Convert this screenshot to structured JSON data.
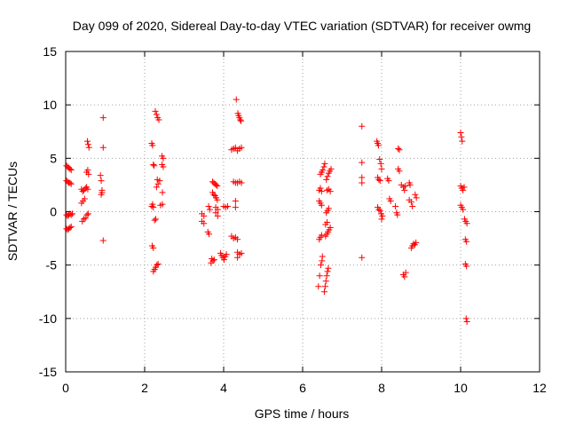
{
  "chart_data": {
    "type": "scatter",
    "title": "Day 099 of 2020, Sidereal Day-to-day VTEC variation (SDTVAR) for receiver owmg",
    "xlabel": "GPS time / hours",
    "ylabel": "SDTVAR / TECUs",
    "xlim": [
      0,
      12
    ],
    "ylim": [
      -15,
      15
    ],
    "xticks": [
      0,
      2,
      4,
      6,
      8,
      10,
      12
    ],
    "yticks": [
      -15,
      -10,
      -5,
      0,
      5,
      10,
      15
    ],
    "grid": true,
    "marker": "+",
    "color": "#ff0000",
    "series": [
      {
        "name": "SDTVAR",
        "points": [
          [
            0.02,
            4.3
          ],
          [
            0.05,
            4.2
          ],
          [
            0.08,
            4.1
          ],
          [
            0.11,
            4.0
          ],
          [
            0.14,
            3.9
          ],
          [
            0.02,
            2.9
          ],
          [
            0.05,
            2.8
          ],
          [
            0.08,
            2.7
          ],
          [
            0.11,
            2.7
          ],
          [
            0.14,
            2.6
          ],
          [
            0.02,
            -0.3
          ],
          [
            0.05,
            -0.4
          ],
          [
            0.08,
            -0.3
          ],
          [
            0.11,
            -0.2
          ],
          [
            0.14,
            -0.3
          ],
          [
            0.17,
            -0.2
          ],
          [
            0.02,
            -1.6
          ],
          [
            0.05,
            -1.7
          ],
          [
            0.08,
            -1.6
          ],
          [
            0.11,
            -1.5
          ],
          [
            0.14,
            -1.4
          ],
          [
            0.4,
            2.1
          ],
          [
            0.43,
            1.9
          ],
          [
            0.46,
            2.0
          ],
          [
            0.5,
            2.2
          ],
          [
            0.53,
            2.3
          ],
          [
            0.56,
            2.1
          ],
          [
            0.4,
            0.8
          ],
          [
            0.44,
            1.0
          ],
          [
            0.48,
            1.2
          ],
          [
            0.42,
            -0.9
          ],
          [
            0.46,
            -0.7
          ],
          [
            0.5,
            -0.6
          ],
          [
            0.54,
            -0.3
          ],
          [
            0.57,
            -0.2
          ],
          [
            0.53,
            3.7
          ],
          [
            0.56,
            3.9
          ],
          [
            0.58,
            3.5
          ],
          [
            0.55,
            6.6
          ],
          [
            0.57,
            6.3
          ],
          [
            0.59,
            6.0
          ],
          [
            0.88,
            3.4
          ],
          [
            0.9,
            2.9
          ],
          [
            0.92,
            2.0
          ],
          [
            0.9,
            1.6
          ],
          [
            0.92,
            1.8
          ],
          [
            0.95,
            8.8
          ],
          [
            0.95,
            6.0
          ],
          [
            0.95,
            -2.7
          ],
          [
            2.18,
            6.4
          ],
          [
            2.2,
            6.2
          ],
          [
            2.22,
            4.4
          ],
          [
            2.24,
            4.3
          ],
          [
            2.18,
            0.5
          ],
          [
            2.2,
            0.7
          ],
          [
            2.22,
            0.4
          ],
          [
            2.25,
            -0.8
          ],
          [
            2.28,
            -0.7
          ],
          [
            2.19,
            -3.2
          ],
          [
            2.22,
            -3.4
          ],
          [
            2.22,
            -5.6
          ],
          [
            2.25,
            -5.4
          ],
          [
            2.28,
            -5.2
          ],
          [
            2.31,
            -5.0
          ],
          [
            2.34,
            -4.9
          ],
          [
            2.27,
            9.4
          ],
          [
            2.3,
            9.1
          ],
          [
            2.33,
            8.8
          ],
          [
            2.36,
            8.6
          ],
          [
            2.3,
            2.3
          ],
          [
            2.34,
            2.6
          ],
          [
            2.38,
            2.9
          ],
          [
            2.32,
            3.0
          ],
          [
            2.44,
            5.2
          ],
          [
            2.47,
            5.0
          ],
          [
            2.44,
            4.4
          ],
          [
            2.47,
            4.2
          ],
          [
            2.4,
            0.6
          ],
          [
            2.45,
            0.7
          ],
          [
            2.45,
            1.8
          ],
          [
            3.45,
            -0.2
          ],
          [
            3.5,
            -0.4
          ],
          [
            3.45,
            -0.9
          ],
          [
            3.5,
            -1.1
          ],
          [
            3.62,
            0.5
          ],
          [
            3.65,
            0.2
          ],
          [
            3.6,
            -1.9
          ],
          [
            3.63,
            -2.1
          ],
          [
            3.7,
            -4.4
          ],
          [
            3.73,
            -4.6
          ],
          [
            3.76,
            -4.5
          ],
          [
            3.68,
            -4.8
          ],
          [
            3.72,
            2.8
          ],
          [
            3.75,
            2.7
          ],
          [
            3.78,
            2.6
          ],
          [
            3.81,
            2.5
          ],
          [
            3.84,
            2.4
          ],
          [
            3.72,
            1.8
          ],
          [
            3.75,
            1.6
          ],
          [
            3.78,
            1.5
          ],
          [
            3.81,
            1.3
          ],
          [
            3.84,
            1.1
          ],
          [
            3.8,
            0.4
          ],
          [
            3.85,
            0.2
          ],
          [
            3.8,
            -0.1
          ],
          [
            3.85,
            -0.4
          ],
          [
            3.92,
            -3.9
          ],
          [
            3.95,
            -4.1
          ],
          [
            3.98,
            -4.3
          ],
          [
            4.01,
            -4.5
          ],
          [
            4.04,
            -4.2
          ],
          [
            4.07,
            -4.0
          ],
          [
            4.0,
            0.5
          ],
          [
            4.05,
            0.4
          ],
          [
            4.1,
            0.5
          ],
          [
            4.2,
            -2.3
          ],
          [
            4.25,
            -2.5
          ],
          [
            4.3,
            -2.4
          ],
          [
            4.35,
            -2.6
          ],
          [
            4.2,
            5.8
          ],
          [
            4.25,
            5.9
          ],
          [
            4.3,
            6.0
          ],
          [
            4.35,
            5.7
          ],
          [
            4.4,
            5.9
          ],
          [
            4.45,
            6.0
          ],
          [
            4.25,
            2.8
          ],
          [
            4.3,
            2.7
          ],
          [
            4.35,
            2.7
          ],
          [
            4.4,
            2.8
          ],
          [
            4.45,
            2.7
          ],
          [
            4.32,
            10.5
          ],
          [
            4.36,
            9.2
          ],
          [
            4.38,
            9.0
          ],
          [
            4.4,
            8.8
          ],
          [
            4.42,
            8.6
          ],
          [
            4.44,
            8.5
          ],
          [
            4.35,
            -3.8
          ],
          [
            4.4,
            -4.0
          ],
          [
            4.45,
            -3.9
          ],
          [
            4.35,
            -4.3
          ],
          [
            4.3,
            1.0
          ],
          [
            4.3,
            0.4
          ],
          [
            6.4,
            -7.0
          ],
          [
            6.43,
            -6.0
          ],
          [
            6.46,
            -5.0
          ],
          [
            6.49,
            -4.6
          ],
          [
            6.5,
            -4.2
          ],
          [
            6.42,
            -2.6
          ],
          [
            6.45,
            -2.4
          ],
          [
            6.48,
            -2.2
          ],
          [
            6.42,
            1.0
          ],
          [
            6.45,
            0.8
          ],
          [
            6.48,
            0.6
          ],
          [
            6.42,
            2.0
          ],
          [
            6.45,
            2.2
          ],
          [
            6.48,
            1.9
          ],
          [
            6.45,
            3.5
          ],
          [
            6.48,
            3.7
          ],
          [
            6.51,
            3.9
          ],
          [
            6.54,
            4.2
          ],
          [
            6.56,
            4.5
          ],
          [
            6.55,
            -7.5
          ],
          [
            6.57,
            -7.0
          ],
          [
            6.59,
            -6.5
          ],
          [
            6.61,
            -6.0
          ],
          [
            6.63,
            -5.6
          ],
          [
            6.65,
            -5.3
          ],
          [
            6.58,
            -2.3
          ],
          [
            6.61,
            -2.1
          ],
          [
            6.64,
            -1.9
          ],
          [
            6.67,
            -1.7
          ],
          [
            6.7,
            -1.5
          ],
          [
            6.6,
            -0.1
          ],
          [
            6.63,
            0.1
          ],
          [
            6.66,
            0.3
          ],
          [
            6.6,
            3.0
          ],
          [
            6.63,
            3.3
          ],
          [
            6.66,
            3.6
          ],
          [
            6.69,
            3.8
          ],
          [
            6.72,
            4.0
          ],
          [
            6.62,
            2.0
          ],
          [
            6.66,
            2.1
          ],
          [
            6.7,
            1.9
          ],
          [
            6.58,
            -1.2
          ],
          [
            6.62,
            -1.0
          ],
          [
            7.5,
            8.0
          ],
          [
            7.5,
            4.6
          ],
          [
            7.5,
            3.2
          ],
          [
            7.5,
            2.7
          ],
          [
            7.5,
            -4.3
          ],
          [
            7.88,
            6.6
          ],
          [
            7.9,
            6.4
          ],
          [
            7.92,
            6.2
          ],
          [
            7.95,
            4.9
          ],
          [
            7.98,
            4.5
          ],
          [
            8.0,
            4.0
          ],
          [
            7.9,
            3.2
          ],
          [
            7.93,
            3.0
          ],
          [
            7.96,
            2.9
          ],
          [
            7.9,
            0.4
          ],
          [
            7.93,
            0.2
          ],
          [
            7.96,
            0.1
          ],
          [
            7.99,
            -0.2
          ],
          [
            8.02,
            -0.4
          ],
          [
            8.0,
            -0.7
          ],
          [
            8.15,
            3.1
          ],
          [
            8.18,
            2.9
          ],
          [
            8.2,
            1.2
          ],
          [
            8.23,
            1.0
          ],
          [
            8.35,
            0.5
          ],
          [
            8.38,
            -0.1
          ],
          [
            8.4,
            -0.3
          ],
          [
            8.42,
            5.9
          ],
          [
            8.45,
            5.8
          ],
          [
            8.42,
            4.0
          ],
          [
            8.45,
            3.8
          ],
          [
            8.5,
            2.5
          ],
          [
            8.55,
            2.3
          ],
          [
            8.58,
            2.0
          ],
          [
            8.6,
            2.4
          ],
          [
            8.55,
            -5.9
          ],
          [
            8.58,
            -6.1
          ],
          [
            8.61,
            -5.7
          ],
          [
            8.7,
            2.7
          ],
          [
            8.72,
            2.5
          ],
          [
            8.7,
            1.1
          ],
          [
            8.75,
            0.9
          ],
          [
            8.78,
            0.5
          ],
          [
            8.75,
            -3.4
          ],
          [
            8.78,
            -3.2
          ],
          [
            8.81,
            -3.0
          ],
          [
            8.84,
            -3.1
          ],
          [
            8.87,
            -2.9
          ],
          [
            8.85,
            1.6
          ],
          [
            8.88,
            1.3
          ],
          [
            10.0,
            7.4
          ],
          [
            10.02,
            7.0
          ],
          [
            10.04,
            6.6
          ],
          [
            10.0,
            2.4
          ],
          [
            10.03,
            2.2
          ],
          [
            10.06,
            2.0
          ],
          [
            10.09,
            2.3
          ],
          [
            10.0,
            0.6
          ],
          [
            10.03,
            0.4
          ],
          [
            10.06,
            0.2
          ],
          [
            10.1,
            -0.7
          ],
          [
            10.13,
            -0.9
          ],
          [
            10.16,
            -1.1
          ],
          [
            10.12,
            -2.6
          ],
          [
            10.15,
            -2.8
          ],
          [
            10.12,
            -4.9
          ],
          [
            10.15,
            -5.1
          ],
          [
            10.14,
            -10.0
          ],
          [
            10.16,
            -10.3
          ]
        ]
      }
    ]
  }
}
